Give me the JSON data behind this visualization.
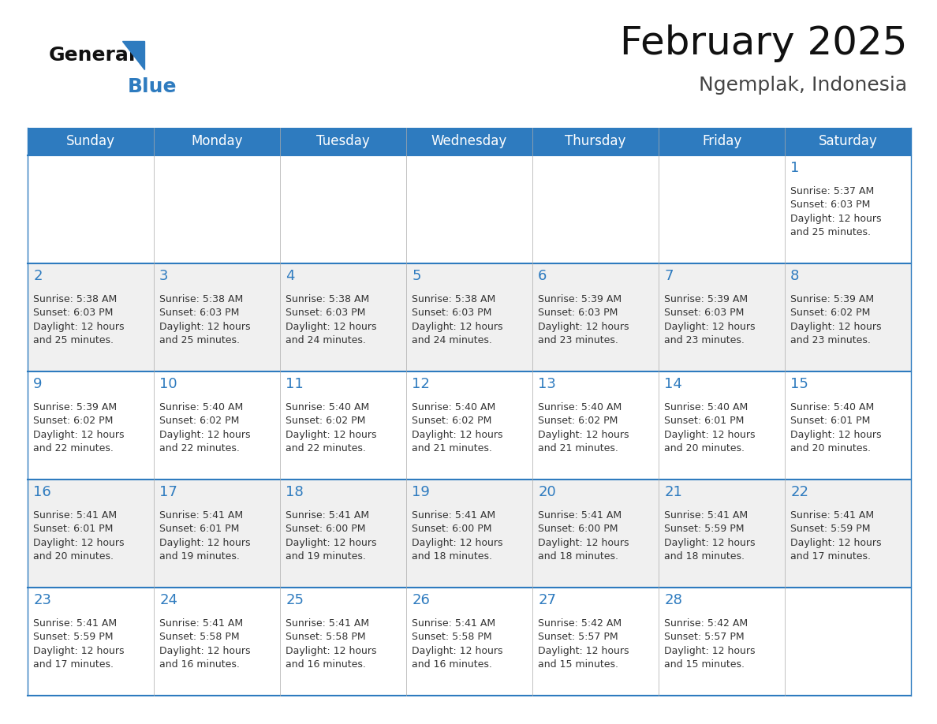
{
  "title": "February 2025",
  "subtitle": "Ngemplak, Indonesia",
  "header_color": "#2E7BBF",
  "header_text_color": "#FFFFFF",
  "cell_bg_even": "#FFFFFF",
  "cell_bg_odd": "#F0F0F0",
  "day_number_color": "#2E7BBF",
  "text_color": "#333333",
  "border_color": "#2E7BBF",
  "separator_color": "#AAAAAA",
  "days_of_week": [
    "Sunday",
    "Monday",
    "Tuesday",
    "Wednesday",
    "Thursday",
    "Friday",
    "Saturday"
  ],
  "calendar_data": [
    [
      {
        "day": null,
        "info": null
      },
      {
        "day": null,
        "info": null
      },
      {
        "day": null,
        "info": null
      },
      {
        "day": null,
        "info": null
      },
      {
        "day": null,
        "info": null
      },
      {
        "day": null,
        "info": null
      },
      {
        "day": 1,
        "info": "Sunrise: 5:37 AM\nSunset: 6:03 PM\nDaylight: 12 hours\nand 25 minutes."
      }
    ],
    [
      {
        "day": 2,
        "info": "Sunrise: 5:38 AM\nSunset: 6:03 PM\nDaylight: 12 hours\nand 25 minutes."
      },
      {
        "day": 3,
        "info": "Sunrise: 5:38 AM\nSunset: 6:03 PM\nDaylight: 12 hours\nand 25 minutes."
      },
      {
        "day": 4,
        "info": "Sunrise: 5:38 AM\nSunset: 6:03 PM\nDaylight: 12 hours\nand 24 minutes."
      },
      {
        "day": 5,
        "info": "Sunrise: 5:38 AM\nSunset: 6:03 PM\nDaylight: 12 hours\nand 24 minutes."
      },
      {
        "day": 6,
        "info": "Sunrise: 5:39 AM\nSunset: 6:03 PM\nDaylight: 12 hours\nand 23 minutes."
      },
      {
        "day": 7,
        "info": "Sunrise: 5:39 AM\nSunset: 6:03 PM\nDaylight: 12 hours\nand 23 minutes."
      },
      {
        "day": 8,
        "info": "Sunrise: 5:39 AM\nSunset: 6:02 PM\nDaylight: 12 hours\nand 23 minutes."
      }
    ],
    [
      {
        "day": 9,
        "info": "Sunrise: 5:39 AM\nSunset: 6:02 PM\nDaylight: 12 hours\nand 22 minutes."
      },
      {
        "day": 10,
        "info": "Sunrise: 5:40 AM\nSunset: 6:02 PM\nDaylight: 12 hours\nand 22 minutes."
      },
      {
        "day": 11,
        "info": "Sunrise: 5:40 AM\nSunset: 6:02 PM\nDaylight: 12 hours\nand 22 minutes."
      },
      {
        "day": 12,
        "info": "Sunrise: 5:40 AM\nSunset: 6:02 PM\nDaylight: 12 hours\nand 21 minutes."
      },
      {
        "day": 13,
        "info": "Sunrise: 5:40 AM\nSunset: 6:02 PM\nDaylight: 12 hours\nand 21 minutes."
      },
      {
        "day": 14,
        "info": "Sunrise: 5:40 AM\nSunset: 6:01 PM\nDaylight: 12 hours\nand 20 minutes."
      },
      {
        "day": 15,
        "info": "Sunrise: 5:40 AM\nSunset: 6:01 PM\nDaylight: 12 hours\nand 20 minutes."
      }
    ],
    [
      {
        "day": 16,
        "info": "Sunrise: 5:41 AM\nSunset: 6:01 PM\nDaylight: 12 hours\nand 20 minutes."
      },
      {
        "day": 17,
        "info": "Sunrise: 5:41 AM\nSunset: 6:01 PM\nDaylight: 12 hours\nand 19 minutes."
      },
      {
        "day": 18,
        "info": "Sunrise: 5:41 AM\nSunset: 6:00 PM\nDaylight: 12 hours\nand 19 minutes."
      },
      {
        "day": 19,
        "info": "Sunrise: 5:41 AM\nSunset: 6:00 PM\nDaylight: 12 hours\nand 18 minutes."
      },
      {
        "day": 20,
        "info": "Sunrise: 5:41 AM\nSunset: 6:00 PM\nDaylight: 12 hours\nand 18 minutes."
      },
      {
        "day": 21,
        "info": "Sunrise: 5:41 AM\nSunset: 5:59 PM\nDaylight: 12 hours\nand 18 minutes."
      },
      {
        "day": 22,
        "info": "Sunrise: 5:41 AM\nSunset: 5:59 PM\nDaylight: 12 hours\nand 17 minutes."
      }
    ],
    [
      {
        "day": 23,
        "info": "Sunrise: 5:41 AM\nSunset: 5:59 PM\nDaylight: 12 hours\nand 17 minutes."
      },
      {
        "day": 24,
        "info": "Sunrise: 5:41 AM\nSunset: 5:58 PM\nDaylight: 12 hours\nand 16 minutes."
      },
      {
        "day": 25,
        "info": "Sunrise: 5:41 AM\nSunset: 5:58 PM\nDaylight: 12 hours\nand 16 minutes."
      },
      {
        "day": 26,
        "info": "Sunrise: 5:41 AM\nSunset: 5:58 PM\nDaylight: 12 hours\nand 16 minutes."
      },
      {
        "day": 27,
        "info": "Sunrise: 5:42 AM\nSunset: 5:57 PM\nDaylight: 12 hours\nand 15 minutes."
      },
      {
        "day": 28,
        "info": "Sunrise: 5:42 AM\nSunset: 5:57 PM\nDaylight: 12 hours\nand 15 minutes."
      },
      {
        "day": null,
        "info": null
      }
    ]
  ],
  "logo_general_color": "#111111",
  "logo_blue_color": "#2E7BBF",
  "logo_triangle_color": "#2E7BBF",
  "title_fontsize": 36,
  "subtitle_fontsize": 18,
  "header_fontsize": 12,
  "day_num_fontsize": 13,
  "cell_text_fontsize": 9
}
